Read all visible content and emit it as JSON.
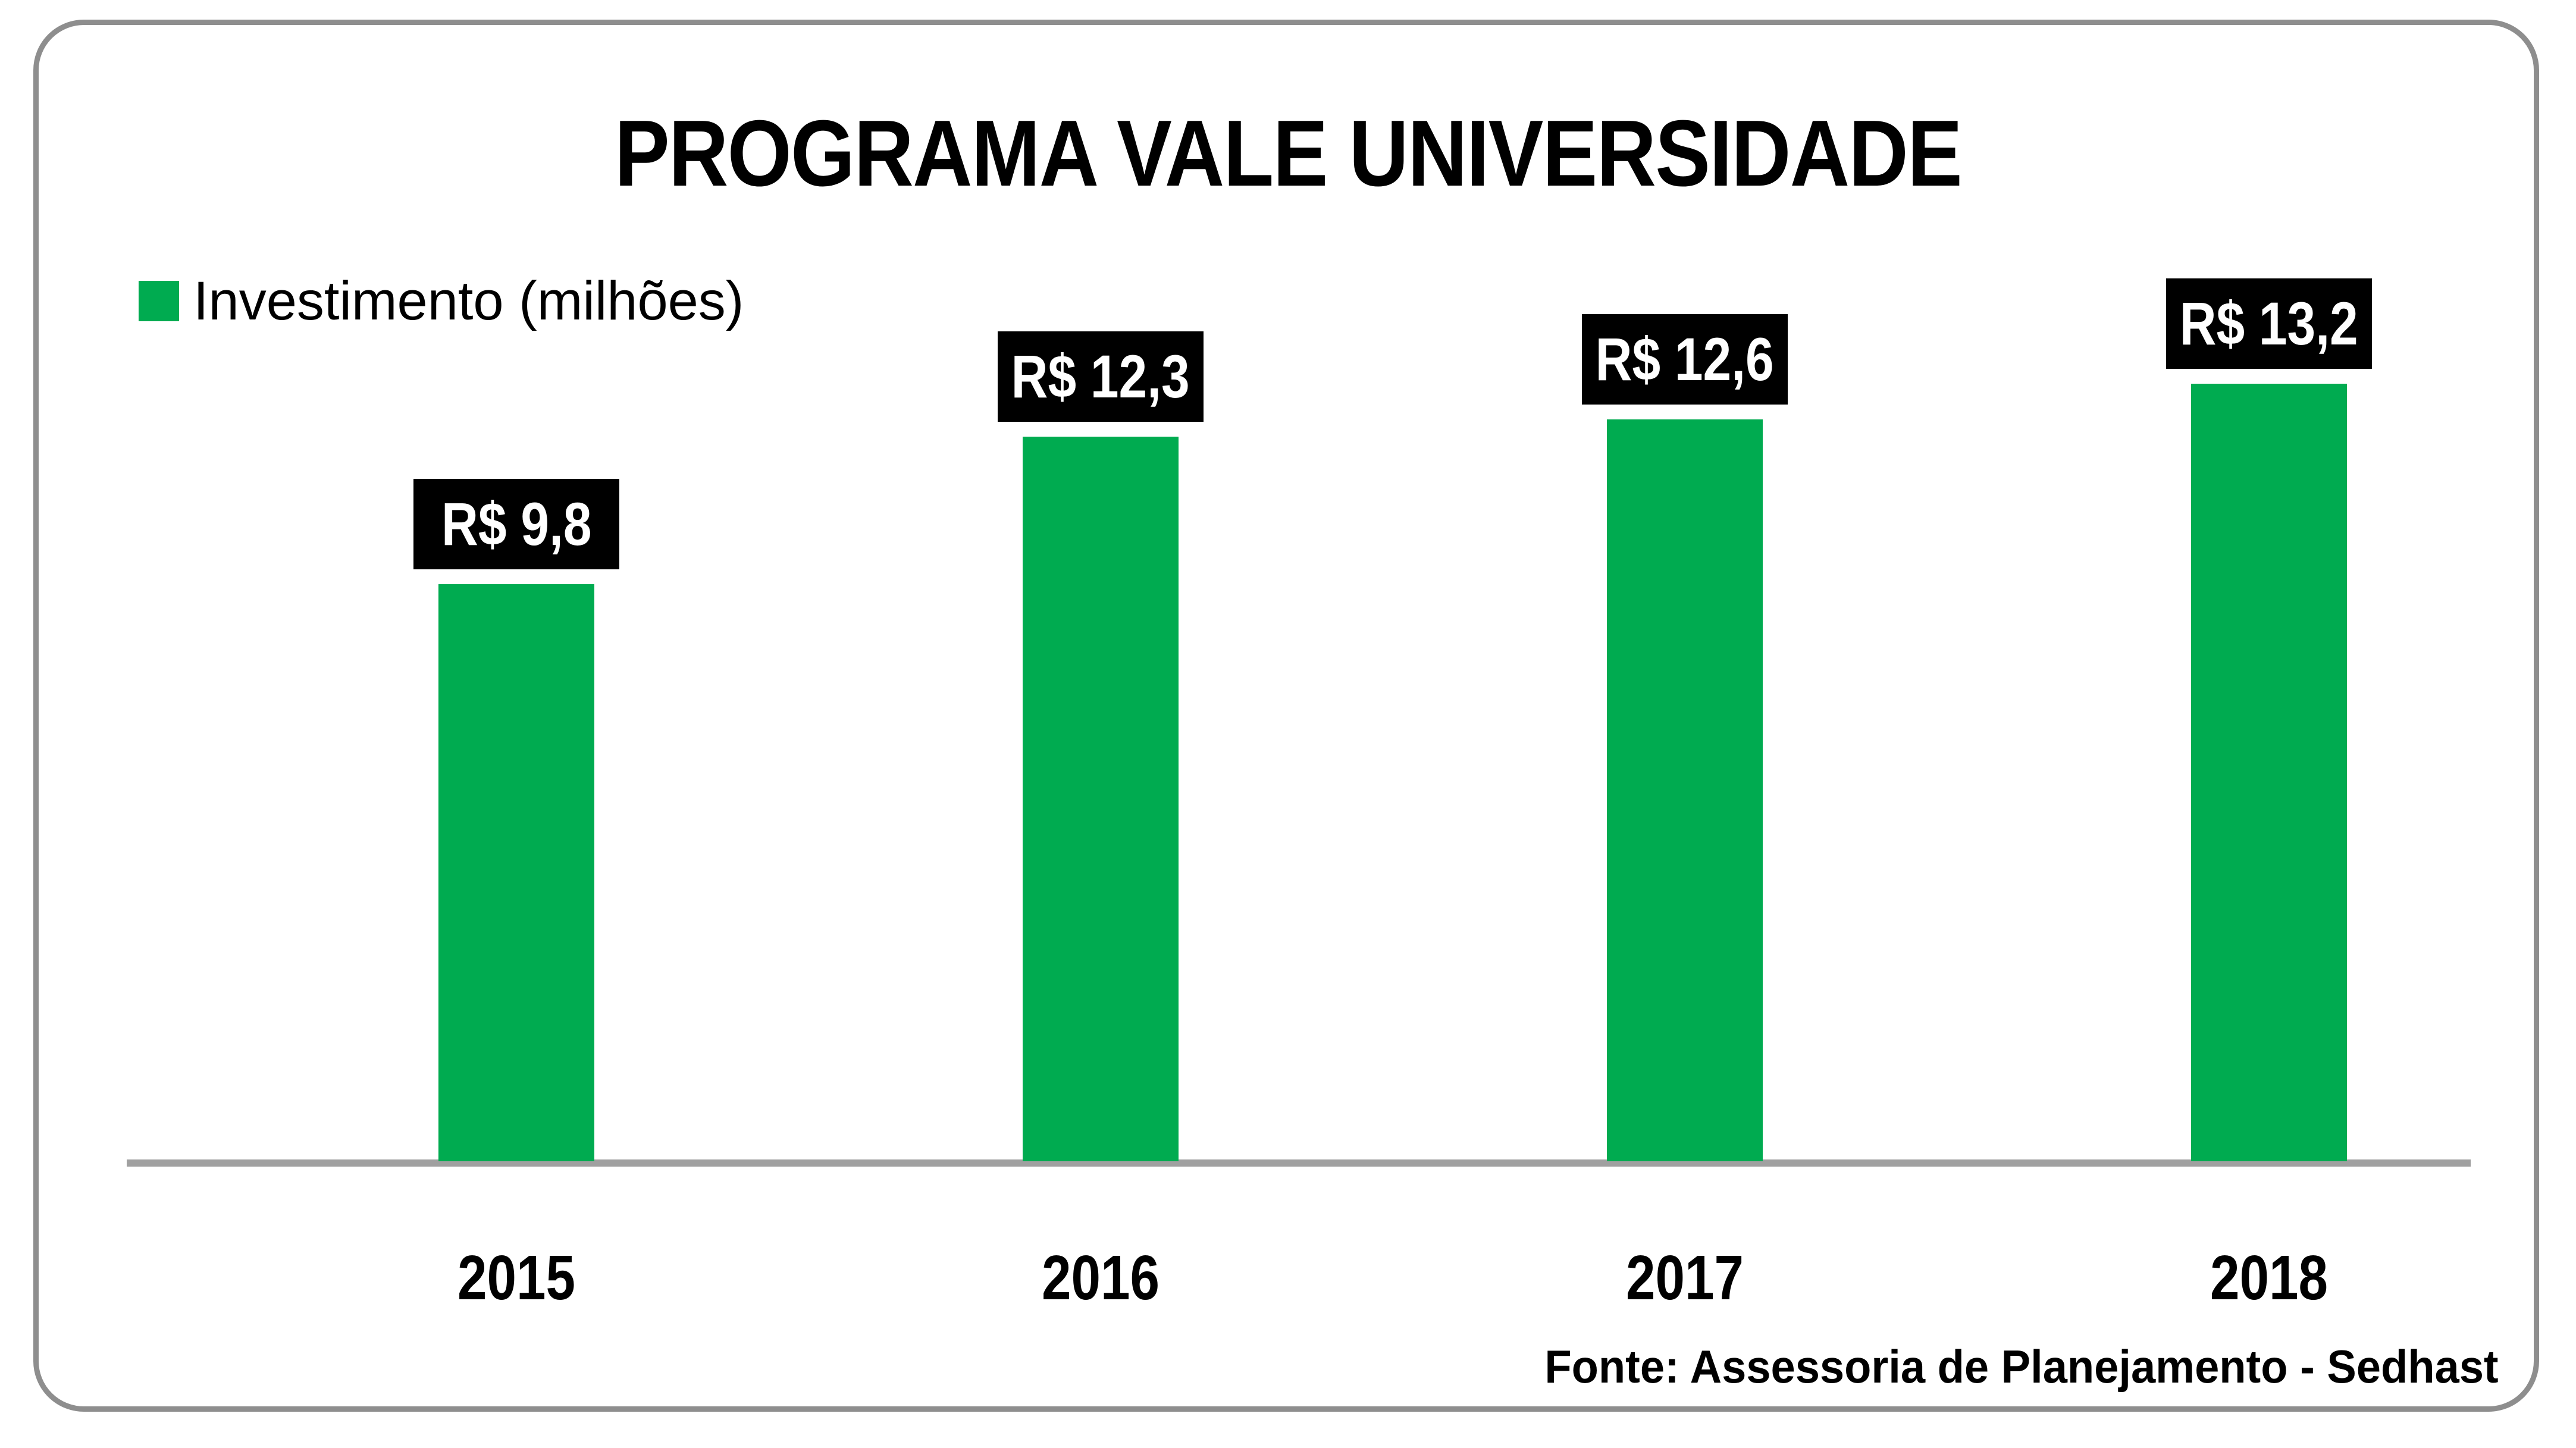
{
  "chart": {
    "title": "PROGRAMA VALE UNIVERSIDADE",
    "legend": {
      "label": "Investimento (milhões)"
    },
    "source": "Fonte: Assessoria de Planejamento - Sedhast",
    "colors": {
      "bar": "#00AB50",
      "axis": "#A0A0A0",
      "label_bg": "#000000",
      "label_fg": "#FFFFFF",
      "frame": "#8E8E8E"
    }
  },
  "chart_data": {
    "type": "bar",
    "title": "PROGRAMA VALE UNIVERSIDADE",
    "series_name": "Investimento (milhões)",
    "categories": [
      "2015",
      "2016",
      "2017",
      "2018"
    ],
    "values": [
      9.8,
      12.3,
      12.6,
      13.2
    ],
    "value_labels": [
      "R$ 9,8",
      "R$ 12,3",
      "R$ 12,6",
      "R$ 13,2"
    ],
    "xlabel": "",
    "ylabel": "",
    "ylim": [
      0,
      14
    ],
    "grid": false,
    "legend_position": "top-left",
    "value_label_style": "black-box-above-bar"
  }
}
